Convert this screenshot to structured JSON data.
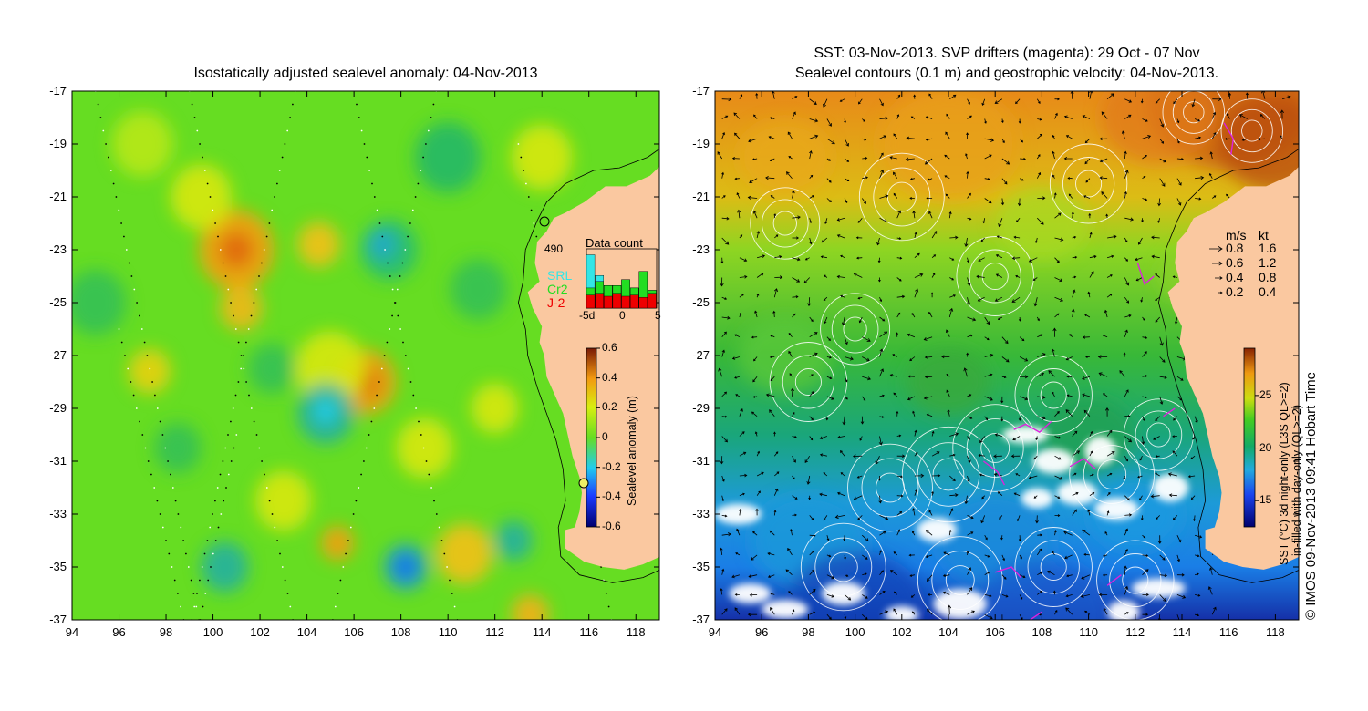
{
  "left_panel": {
    "title": "Isostatically adjusted sealevel anomaly: 04-Nov-2013",
    "x_ticks": [
      "94",
      "96",
      "98",
      "100",
      "102",
      "104",
      "106",
      "108",
      "110",
      "112",
      "114",
      "116",
      "118"
    ],
    "y_ticks": [
      "-17",
      "-19",
      "-21",
      "-23",
      "-25",
      "-27",
      "-29",
      "-31",
      "-33",
      "-35",
      "-37"
    ],
    "colorbar": {
      "label": "Sealevel anomaly (m)",
      "ticks": [
        "0.6",
        "0.4",
        "0.2",
        "0",
        "-0.2",
        "-0.4",
        "-0.6"
      ]
    },
    "data_count": {
      "title": "Data count",
      "total": "490",
      "legend": [
        {
          "name": "SRL",
          "color": "#33e6e6"
        },
        {
          "name": "Cr2",
          "color": "#22dd22"
        },
        {
          "name": "J-2",
          "color": "#ee0000"
        }
      ],
      "x_ticks": [
        "-5d",
        "0",
        "5"
      ],
      "bars": [
        {
          "red": 0.22,
          "green": 0.34,
          "cyan": 0.9
        },
        {
          "red": 0.25,
          "green": 0.45,
          "cyan": 0.55
        },
        {
          "red": 0.2,
          "green": 0.38,
          "cyan": 0.38
        },
        {
          "red": 0.25,
          "green": 0.38,
          "cyan": 0.38
        },
        {
          "red": 0.2,
          "green": 0.48,
          "cyan": 0.48
        },
        {
          "red": 0.22,
          "green": 0.34,
          "cyan": 0.34
        },
        {
          "red": 0.18,
          "green": 0.62,
          "cyan": 0.62
        },
        {
          "red": 0.25,
          "green": 0.3,
          "cyan": 0.3
        }
      ]
    }
  },
  "right_panel": {
    "title_line1": "SST: 03-Nov-2013. SVP drifters (magenta): 29 Oct - 07 Nov",
    "title_line2": "Sealevel contours (0.1 m) and geostrophic velocity: 04-Nov-2013.",
    "x_ticks": [
      "94",
      "96",
      "98",
      "100",
      "102",
      "104",
      "106",
      "108",
      "110",
      "112",
      "114",
      "116",
      "118"
    ],
    "y_ticks": [
      "-17",
      "-19",
      "-21",
      "-23",
      "-25",
      "-27",
      "-29",
      "-31",
      "-33",
      "-35",
      "-37"
    ],
    "velocity_legend": {
      "header_ms": "m/s",
      "header_kt": "kt",
      "rows": [
        {
          "ms": "0.8",
          "kt": "1.6"
        },
        {
          "ms": "0.6",
          "kt": "1.2"
        },
        {
          "ms": "0.4",
          "kt": "0.8"
        },
        {
          "ms": "0.2",
          "kt": "0.4"
        }
      ]
    },
    "colorbar": {
      "label_line1": "SST (°C) 3d night-only (L3S QL>=2)",
      "label_line2": "in-filled with day-only (QL>=2)",
      "ticks": [
        "25",
        "20",
        "15"
      ]
    },
    "credit": "© IMOS 09-Nov-2013 09:41 Hobart Time"
  },
  "colors": {
    "land": "#fac8a0",
    "ocean_base": "#66dd22",
    "sst_warm": "#cc5500",
    "sst_cold": "#0a3a9a"
  }
}
